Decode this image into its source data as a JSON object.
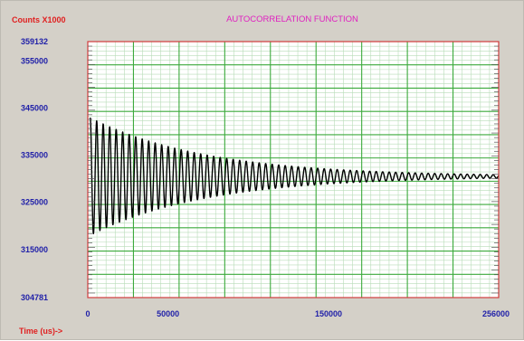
{
  "chart_data": {
    "type": "line",
    "title": "AUTOCORRELATION FUNCTION",
    "ylabel": "Counts X1000",
    "xlabel": "Time (us)->",
    "xlim": [
      0,
      256000
    ],
    "ylim": [
      304781,
      359132
    ],
    "y_ticks": [
      {
        "value": 359132,
        "label": "359132"
      },
      {
        "value": 355000,
        "label": "355000"
      },
      {
        "value": 345000,
        "label": "345000"
      },
      {
        "value": 335000,
        "label": "335000"
      },
      {
        "value": 325000,
        "label": "325000"
      },
      {
        "value": 315000,
        "label": "315000"
      },
      {
        "value": 304781,
        "label": "304781"
      }
    ],
    "x_ticks": [
      {
        "value": 0,
        "label": "0"
      },
      {
        "value": 50000,
        "label": "50000"
      },
      {
        "value": 150000,
        "label": "150000"
      },
      {
        "value": 256000,
        "label": "256000"
      }
    ],
    "grid": true,
    "series": [
      {
        "color": "#000000",
        "model": "damped-oscillation",
        "baseline": 330500,
        "initial_amplitude": 12500,
        "decay_time": 72000,
        "period": 4050,
        "x_start": 1500,
        "x_end": 256000
      }
    ],
    "colors": {
      "background": "#d4d0c8",
      "plot_background": "#ffffff",
      "major_grid": "#3caa3c",
      "minor_grid": "#b8dcb8",
      "border": "#d03c3c"
    }
  }
}
